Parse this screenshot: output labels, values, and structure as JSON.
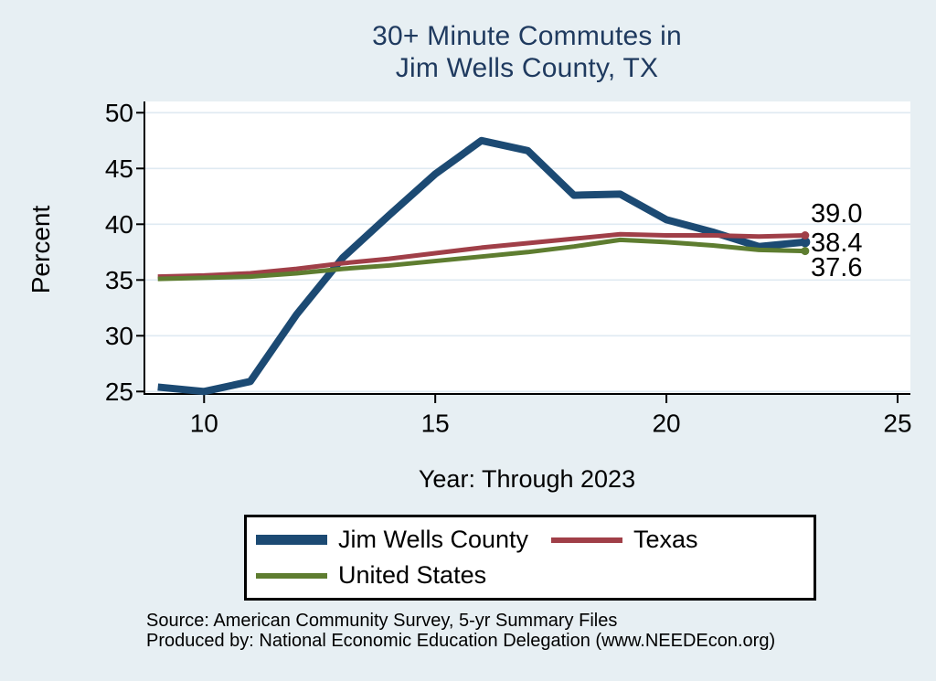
{
  "title": {
    "line1": "30+ Minute Commutes in",
    "line2": "Jim Wells County, TX"
  },
  "chart_data": {
    "type": "line",
    "x": [
      9,
      10,
      11,
      12,
      13,
      14,
      15,
      16,
      17,
      18,
      19,
      20,
      21,
      22,
      23
    ],
    "series": [
      {
        "name": "Jim Wells County",
        "color": "#1c4a73",
        "line_width": 8,
        "values": [
          25.4,
          25.0,
          25.9,
          31.9,
          37.0,
          40.8,
          44.5,
          47.5,
          46.6,
          42.6,
          42.7,
          40.4,
          39.3,
          38.0,
          38.4
        ],
        "end_label": "38.4"
      },
      {
        "name": "Texas",
        "color": "#a03f48",
        "line_width": 5,
        "values": [
          35.3,
          35.4,
          35.6,
          36.0,
          36.5,
          36.9,
          37.4,
          37.9,
          38.3,
          38.7,
          39.1,
          39.0,
          39.0,
          38.9,
          39.0
        ],
        "end_label": "39.0"
      },
      {
        "name": "United States",
        "color": "#5e7d30",
        "line_width": 5,
        "values": [
          35.1,
          35.2,
          35.3,
          35.6,
          36.0,
          36.3,
          36.7,
          37.1,
          37.5,
          38.0,
          38.6,
          38.4,
          38.1,
          37.7,
          37.6
        ],
        "end_label": "37.6"
      }
    ],
    "title": "30+ Minute Commutes in Jim Wells County, TX",
    "xlabel": "Year: Through 2023",
    "ylabel": "Percent",
    "xticks": [
      10,
      15,
      20,
      25
    ],
    "yticks": [
      25,
      30,
      35,
      40,
      45,
      50
    ],
    "xlim": [
      9,
      25.3
    ],
    "ylim": [
      24.7,
      50.5
    ],
    "grid": "horizontal",
    "legend_position": "bottom",
    "end_labels": [
      "39.0",
      "38.4",
      "37.6"
    ]
  },
  "source": {
    "line1": "Source: American Community Survey, 5-yr Summary Files",
    "line2": "Produced by: National Economic Education Delegation (www.NEEDEcon.org)"
  },
  "colors": {
    "background": "#e7eff3",
    "plot_background": "#ffffff",
    "gridline": "#dfeaf2",
    "axis": "#000000",
    "title_text": "#1f3a5f",
    "label_text": "#000000"
  }
}
